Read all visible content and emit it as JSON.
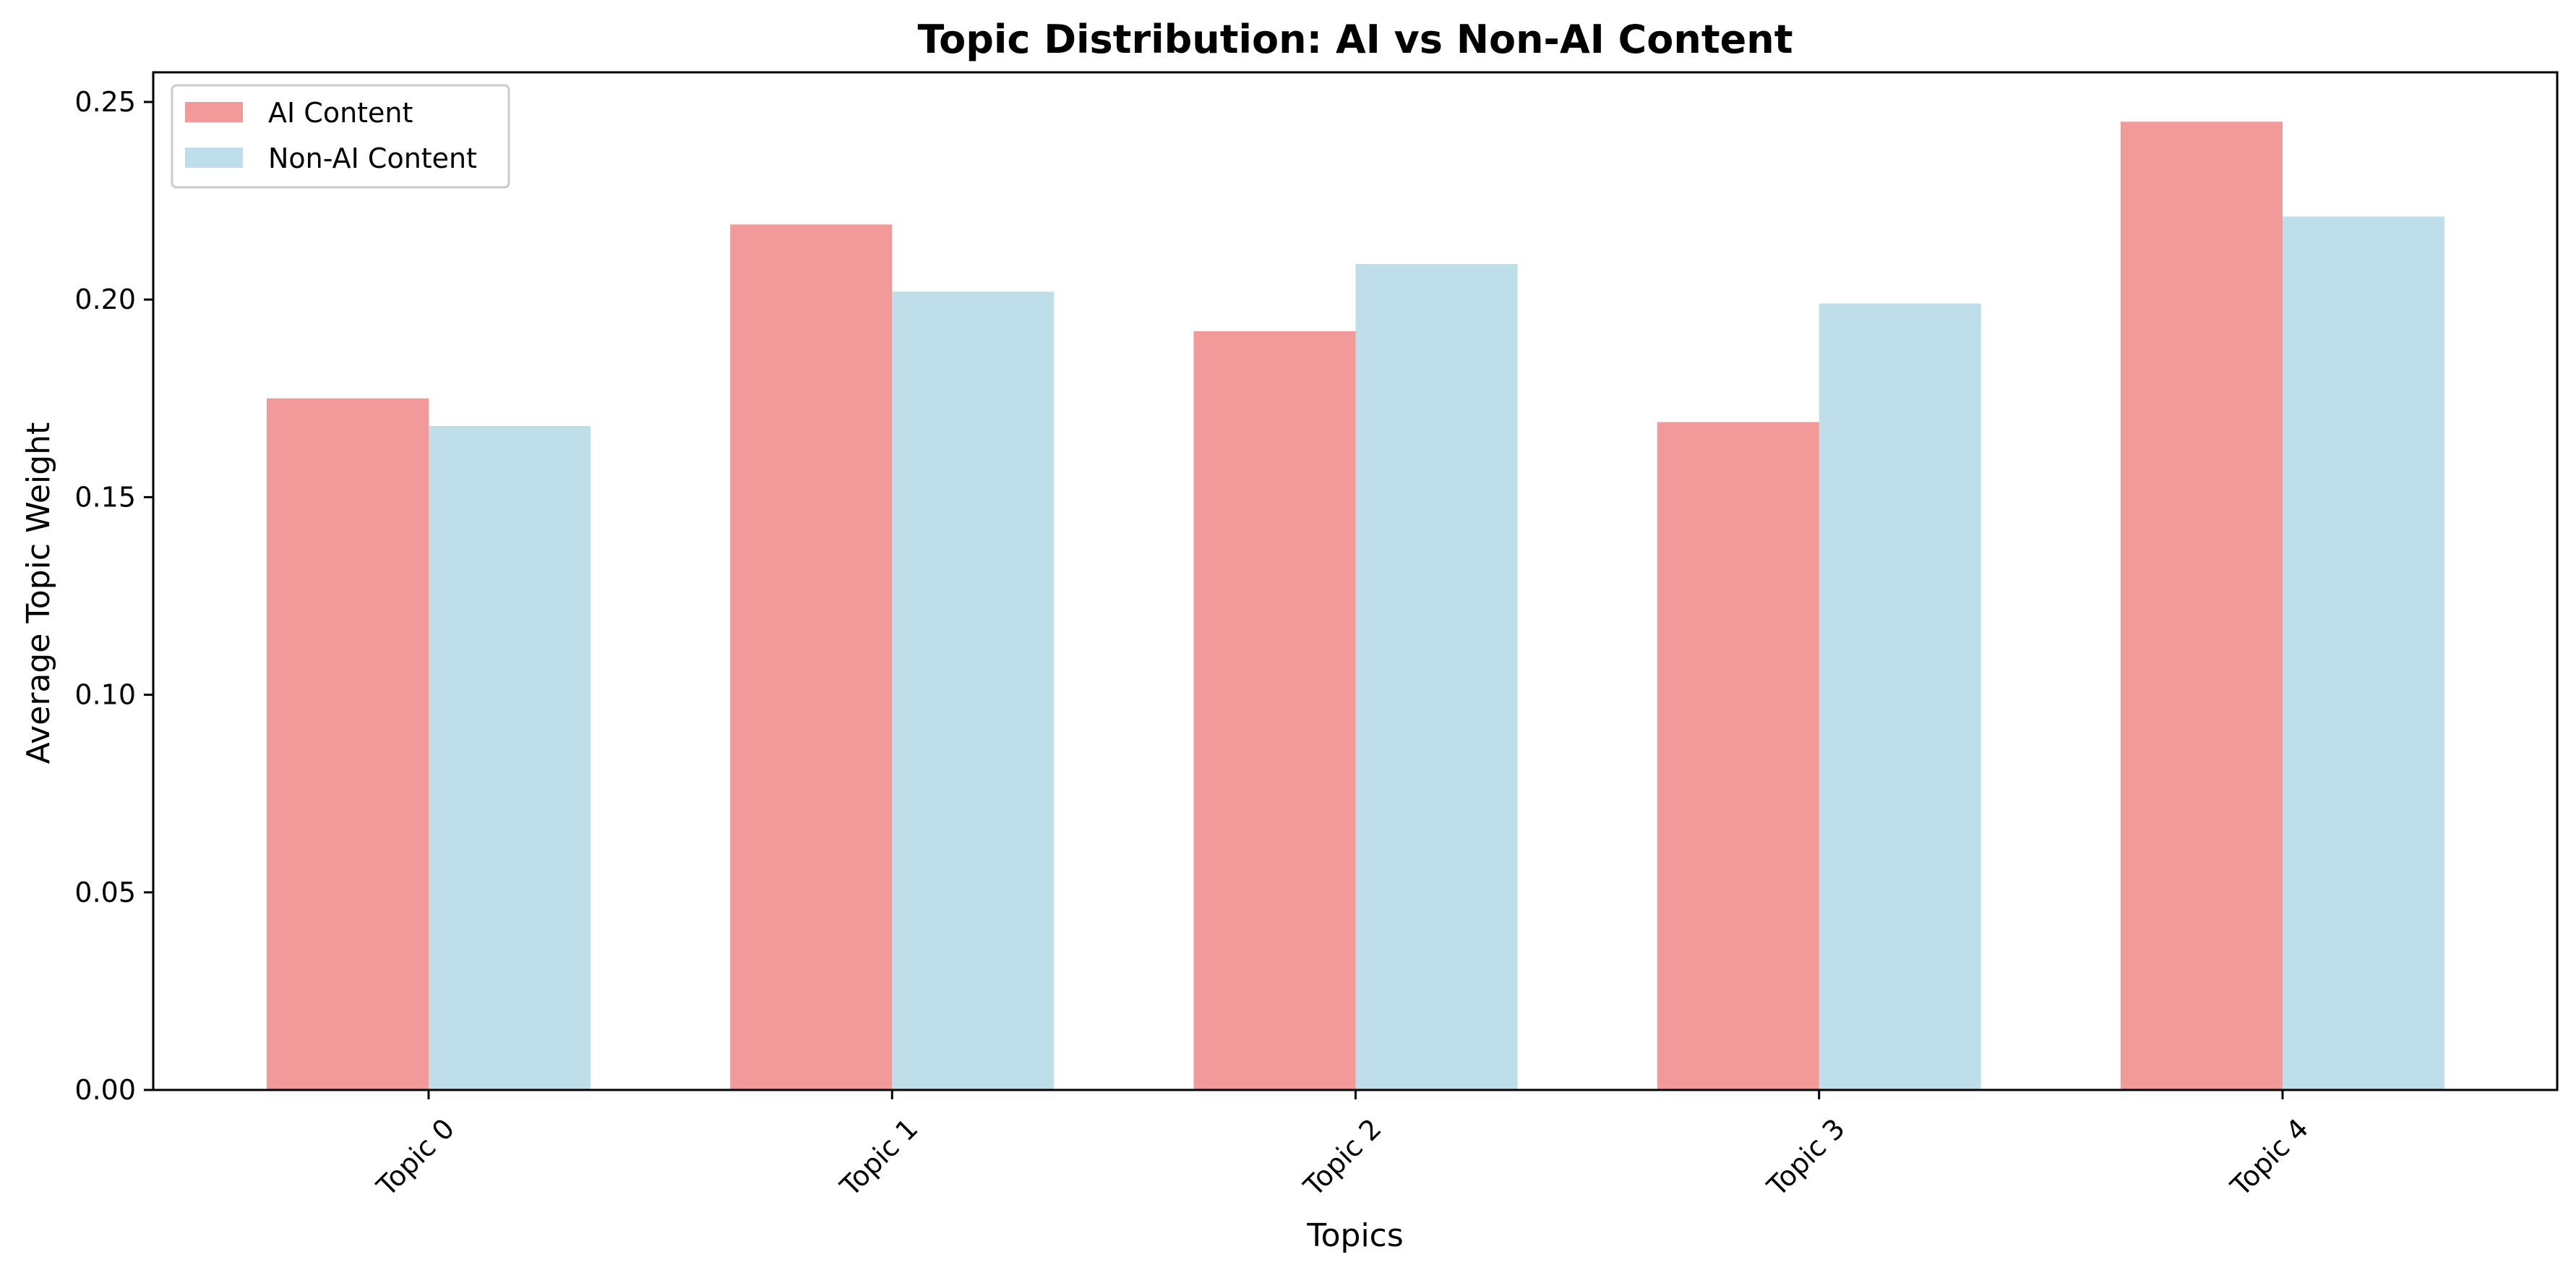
{
  "chart_data": {
    "type": "bar",
    "title": "Topic Distribution: AI vs Non-AI Content",
    "xlabel": "Topics",
    "ylabel": "Average Topic Weight",
    "categories": [
      "Topic 0",
      "Topic 1",
      "Topic 2",
      "Topic 3",
      "Topic 4"
    ],
    "series": [
      {
        "name": "AI Content",
        "color": "#f19a99",
        "values": [
          0.175,
          0.219,
          0.192,
          0.169,
          0.245
        ]
      },
      {
        "name": "Non-AI Content",
        "color": "#bedfea",
        "values": [
          0.168,
          0.202,
          0.209,
          0.199,
          0.221
        ]
      }
    ],
    "ylim": [
      0,
      0.2575
    ],
    "yticks": [
      "0.00",
      "0.05",
      "0.10",
      "0.15",
      "0.20",
      "0.25"
    ],
    "xtick_rotation": 45,
    "grid": false,
    "legend": "top-left"
  }
}
